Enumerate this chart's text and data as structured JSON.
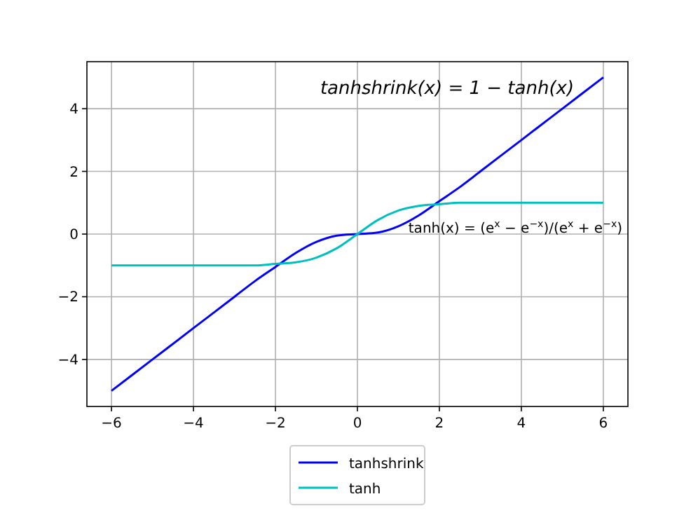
{
  "chart_data": {
    "type": "line",
    "x": [
      -6,
      -5,
      -4,
      -3,
      -2.5,
      -2,
      -1.5,
      -1,
      -0.5,
      0,
      0.5,
      1,
      1.5,
      2,
      2.5,
      3,
      4,
      5,
      6
    ],
    "series": [
      {
        "name": "tanhshrink",
        "color": "#0000ff",
        "values": [
          -5,
          -4,
          -3,
          -2,
          -1.5,
          -1.05,
          -0.6,
          -0.25,
          -0.05,
          0,
          0.05,
          0.25,
          0.6,
          1.05,
          1.5,
          2,
          3,
          4,
          5
        ]
      },
      {
        "name": "tanh",
        "color": "#00bfbf",
        "values": [
          -1,
          -1,
          -1,
          -1,
          -1,
          -0.95,
          -0.9,
          -0.75,
          -0.45,
          0,
          0.45,
          0.75,
          0.9,
          0.95,
          1,
          1,
          1,
          1,
          1
        ]
      }
    ],
    "xlim": [
      -6.6,
      6.6
    ],
    "ylim": [
      -5.5,
      5.5
    ],
    "xticks": [
      -6,
      -4,
      -2,
      0,
      2,
      4,
      6
    ],
    "yticks": [
      -4,
      -2,
      0,
      2,
      4
    ],
    "grid": true,
    "legend": "bottom",
    "line_style": "solid",
    "marker": "none",
    "annotations": [
      "tanhshrink(x) = 1 − tanh(x)",
      "tanh(x) = (e$^{x}$ − e$^{−x}$)/(e$^{x}$ + e$^{−x}$)"
    ]
  }
}
